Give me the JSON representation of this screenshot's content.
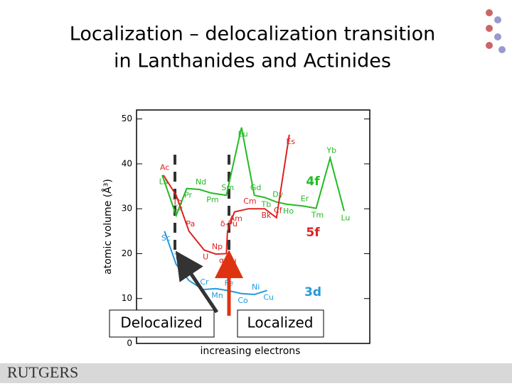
{
  "title_lines": [
    "Localization – delocalization transition",
    "in Lanthanides and Actinides"
  ],
  "chart_data": {
    "type": "line",
    "ylabel": "atomic volume (Å³)",
    "xlabel": "increasing electrons",
    "xlim": [
      0,
      20
    ],
    "ylim": [
      0,
      52
    ],
    "yticks": [
      0,
      10,
      20,
      30,
      40,
      50
    ],
    "series": [
      {
        "name": "4f",
        "color": "#22bb22",
        "labels": [
          "La",
          "Ce",
          "Pr",
          "Nd",
          "Pm",
          "Sm",
          "Eu",
          "Gd",
          "Tb",
          "Dy",
          "Ho",
          "Er",
          "Tm",
          "Yb",
          "Lu"
        ],
        "x": [
          2.2,
          3.4,
          4.3,
          5.4,
          6.4,
          7.7,
          9.0,
          10.1,
          11.0,
          12.0,
          12.9,
          14.3,
          15.4,
          16.6,
          17.8
        ],
        "values": [
          37.5,
          28.5,
          34.5,
          34.3,
          33.5,
          33,
          48.1,
          33,
          32.5,
          31.5,
          31,
          30.6,
          30.1,
          41.3,
          29.5
        ]
      },
      {
        "name": "5f",
        "color": "#dd2222",
        "labels": [
          "Ac",
          "Th",
          "Pa",
          "U",
          "Np",
          "α-Pu",
          "δ-Pu",
          "Am",
          "Cm",
          "Bk",
          "Cf",
          "Es"
        ],
        "x": [
          2.3,
          3.4,
          4.5,
          5.8,
          6.8,
          7.7,
          7.8,
          8.4,
          9.6,
          11.0,
          12.0,
          13.1
        ],
        "values": [
          37.5,
          33,
          25,
          20.8,
          19.9,
          20,
          25,
          29.3,
          30,
          30,
          28,
          46.5
        ]
      },
      {
        "name": "3d",
        "color": "#2299dd",
        "labels": [
          "Sc",
          "Ti",
          null,
          "Cr",
          "Mn",
          "Fe",
          "Co",
          "Ni",
          "Cu"
        ],
        "x": [
          2.4,
          3.4,
          4.5,
          5.7,
          6.8,
          7.8,
          9.0,
          10.1,
          11.2
        ],
        "values": [
          25,
          17.6,
          14,
          12,
          12.2,
          11.8,
          11.1,
          10.9,
          11.8
        ]
      }
    ]
  },
  "annotations": [
    "Delocalized",
    "Localized"
  ],
  "logo": "RUTGERS"
}
